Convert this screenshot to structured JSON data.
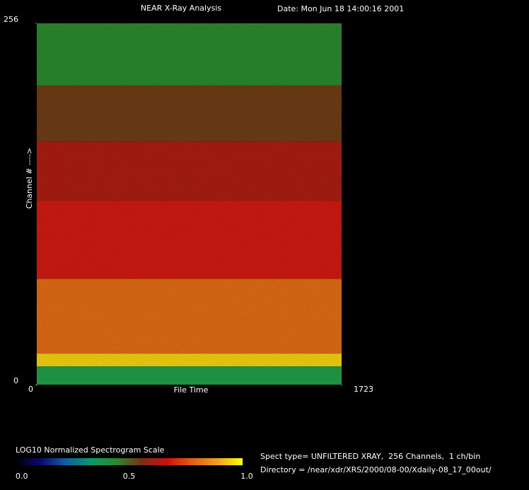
{
  "chart_data": {
    "type": "heatmap",
    "title": "NEAR X-Ray Analysis",
    "subtitle": "Date: Mon Jun 18 14:00:16 2001",
    "xlabel": "File Time",
    "ylabel": "Channel # ---->",
    "xlim": [
      0,
      1723
    ],
    "ylim": [
      0,
      256
    ],
    "xticks": [
      0,
      1723
    ],
    "yticks": [
      0,
      256
    ],
    "ybins": [
      0,
      13,
      22,
      75,
      130,
      172,
      212,
      256
    ],
    "values": [
      0.4,
      0.95,
      0.8,
      0.68,
      0.62,
      0.54,
      0.44
    ],
    "colors": [
      "#000000",
      "#0a0a6e",
      "#1060a0",
      "#0a9a6a",
      "#2a8a2a",
      "#7a3010",
      "#d01010",
      "#e06010",
      "#f0a020",
      "#ffff00"
    ],
    "colorbar": {
      "label": "LOG10 Normalized Spectrogram Scale",
      "lim": [
        0,
        1
      ],
      "ticks": [
        {
          "value": 0,
          "label": "0.0"
        },
        {
          "value": 0.5,
          "label": "0.5"
        },
        {
          "value": 1,
          "label": "1.0"
        }
      ]
    },
    "notes": [
      "Spect type= UNFILTERED XRAY,  256 Channels,  1 ch/bin",
      "Directory = /near/xdr/XRS/2000/08-00/Xdaily-08_17_00out/"
    ]
  }
}
